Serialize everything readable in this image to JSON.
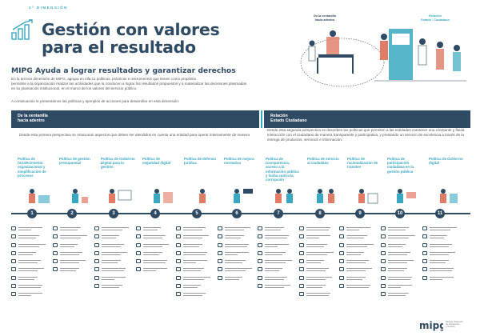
{
  "header": {
    "dimension_label": "3ª DIMENSIÓN",
    "title_line1": "Gestión con valores",
    "title_line2": "para el resultado",
    "subtitle": "MIPG Ayuda a lograr resultados y garantizar derechos",
    "intro_lines": [
      "En la tercera dimensión de MIPG, agrupa en ella 11 políticas, prácticas e instrumentos que tienen como propósito",
      "permitirle a la organización realizar las actividades que la conducen a lograr los resultados propuestos y a materializar las decisiones plasmadas",
      "en su planeación institucional, en el marco de los valores del servicio público."
    ],
    "intro2": "A continuación le presentamos las políticas y ejemplos de acciones para desarrollar en esta dimensión:"
  },
  "hero": {
    "tag_left_line1": "De la ventanilla",
    "tag_left_line2": "hacia adentro",
    "tag_right_line1": "Relación",
    "tag_right_line2": "Estado - Ciudadano"
  },
  "bands": {
    "left_line1": "De la ventanilla",
    "left_line2": "hacia adentro",
    "right_line1": "Relación",
    "right_line2": "Estado   Ciudadano"
  },
  "paragraphs": {
    "left": "Desde esta primera perspectiva se relacionan aspectos que deben ser atendidos en cuenta una entidad para operar internamente de manera",
    "right": "Desde esta segunda perspectiva se describen las políticas que permiten a las entidades mantener una constante y fluida interacción con el ciudadano de manera transparente y participativa, y prestando un servicio de excelencia a través de la entrega de productos, servicios e información."
  },
  "policies": [
    {
      "n": "1",
      "title": "Política de fortalecimiento organizacional y simplificación de procesos"
    },
    {
      "n": "2",
      "title": "Política de gestión presupuestal"
    },
    {
      "n": "3",
      "title": "Política de Gobierno Digital para la gestión"
    },
    {
      "n": "4",
      "title": "Política de seguridad digital"
    },
    {
      "n": "5",
      "title": "Política de defensa jurídica"
    },
    {
      "n": "6",
      "title": "Política de mejora normativa"
    },
    {
      "n": "7",
      "title": "Política de transparencia, acceso a la información pública y lucha contra la corrupción"
    },
    {
      "n": "8",
      "title": "Política de servicio al ciudadano"
    },
    {
      "n": "9",
      "title": "Política de racionalización de trámites"
    },
    {
      "n": "10",
      "title": "Política de participación ciudadana en la gestión pública"
    },
    {
      "n": "11",
      "title": "Política de Gobierno digital"
    }
  ],
  "footer": {
    "logo": "mipg",
    "sub_line1": "Modelo Integrado",
    "sub_line2": "de Planeación",
    "sub_line3": "y Gestión"
  },
  "colors": {
    "navy": "#2f4a63",
    "teal": "#3aa8c1",
    "coral": "#e07b66"
  }
}
